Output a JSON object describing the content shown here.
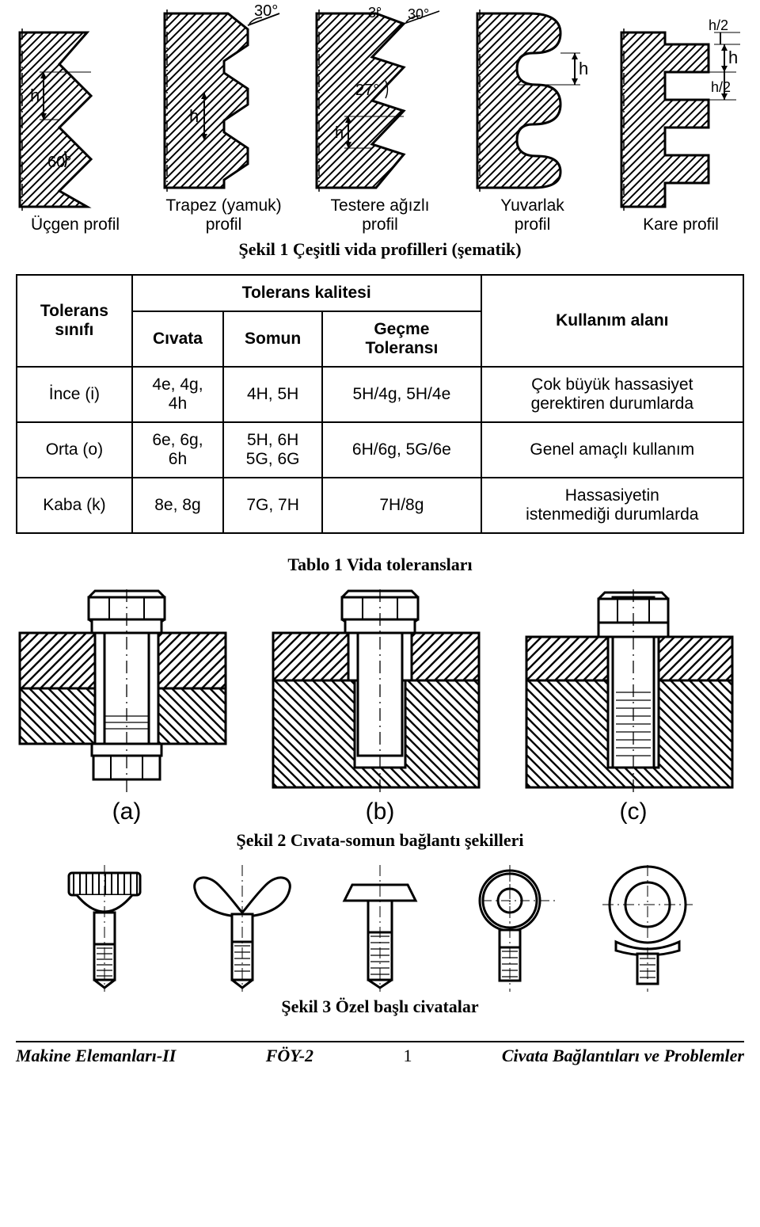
{
  "colors": {
    "ink": "#000000",
    "paper": "#ffffff"
  },
  "fig1": {
    "caption": "Şekil 1  Çeşitli vida profilleri  (şematik)",
    "profiles": [
      {
        "label": "Üçgen profil",
        "angle": "60°",
        "h": "h",
        "top_angle": ""
      },
      {
        "label": "Trapez (yamuk)\nprofil",
        "angle": "",
        "h": "h",
        "top_angle": "30°"
      },
      {
        "label": "Testere ağızlı\nprofil",
        "angle": "27°",
        "h": "h",
        "top_angle": "3°",
        "top_angle2": "30°"
      },
      {
        "label": "Yuvarlak\nprofil",
        "angle": "",
        "h": "h",
        "top_angle": ""
      },
      {
        "label": "Kare profil",
        "angle": "",
        "h": "h",
        "top_angle": "",
        "half": "h/2"
      }
    ]
  },
  "table1": {
    "caption": "Tablo 1  Vida toleransları",
    "head": {
      "c1": "Tolerans\nsınıfı",
      "c2": "Tolerans kalitesi",
      "c2a": "Cıvata",
      "c2b": "Somun",
      "c2c": "Geçme\nToleransı",
      "c3": "Kullanım alanı"
    },
    "rows": [
      {
        "cls": "İnce (i)",
        "civata": "4e, 4g,\n4h",
        "somun": "4H, 5H",
        "gecme": "5H/4g, 5H/4e",
        "alan": "Çok büyük hassasiyet\ngerektiren durumlarda"
      },
      {
        "cls": "Orta (o)",
        "civata": "6e, 6g,\n6h",
        "somun": "5H, 6H\n5G, 6G",
        "gecme": "6H/6g, 5G/6e",
        "alan": "Genel amaçlı kullanım"
      },
      {
        "cls": "Kaba (k)",
        "civata": "8e, 8g",
        "somun": "7G, 7H",
        "gecme": "7H/8g",
        "alan": "Hassasiyetin\nistenmediği durumlarda"
      }
    ]
  },
  "fig2": {
    "caption": "Şekil 2 Cıvata-somun bağlantı şekilleri",
    "labels": [
      "(a)",
      "(b)",
      "(c)"
    ]
  },
  "fig3": {
    "caption": "Şekil 3 Özel başlı civatalar",
    "count": 5
  },
  "footer": {
    "left": "Makine Elemanları-II",
    "mid": "FÖY-2",
    "page": "1",
    "right": "Civata Bağlantıları ve Problemler"
  }
}
